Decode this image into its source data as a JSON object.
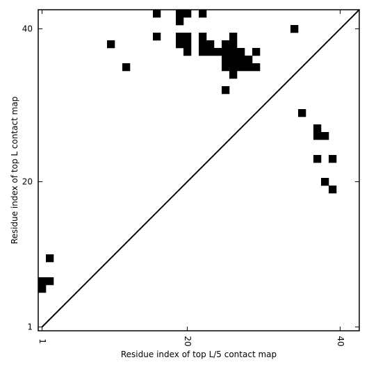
{
  "chart_data": {
    "type": "heatmap",
    "xlabel": "Residue index of top L/5 contact map",
    "ylabel": "Residue index of top L contact map",
    "xlim": [
      0.5,
      42.5
    ],
    "ylim": [
      0.5,
      42.5
    ],
    "x_ticks": [
      {
        "value": 1,
        "label": "1"
      },
      {
        "value": 20,
        "label": "20"
      },
      {
        "value": 40,
        "label": "40"
      }
    ],
    "y_ticks": [
      {
        "value": 1,
        "label": "1"
      },
      {
        "value": 20,
        "label": "20"
      },
      {
        "value": 40,
        "label": "40"
      }
    ],
    "diagonal": true,
    "cell_color": "#000000",
    "background_color": "#ffffff",
    "cells": [
      [
        1,
        6
      ],
      [
        1,
        7
      ],
      [
        2,
        7
      ],
      [
        2,
        10
      ],
      [
        10,
        38
      ],
      [
        12,
        35
      ],
      [
        16,
        39
      ],
      [
        16,
        42
      ],
      [
        19,
        38
      ],
      [
        19,
        39
      ],
      [
        19,
        41
      ],
      [
        19,
        42
      ],
      [
        20,
        37
      ],
      [
        20,
        38
      ],
      [
        20,
        39
      ],
      [
        20,
        42
      ],
      [
        22,
        37
      ],
      [
        22,
        38
      ],
      [
        22,
        39
      ],
      [
        22,
        42
      ],
      [
        23,
        37
      ],
      [
        23,
        38
      ],
      [
        24,
        37
      ],
      [
        25,
        32
      ],
      [
        25,
        35
      ],
      [
        25,
        36
      ],
      [
        25,
        37
      ],
      [
        25,
        38
      ],
      [
        26,
        34
      ],
      [
        26,
        35
      ],
      [
        26,
        36
      ],
      [
        26,
        37
      ],
      [
        26,
        38
      ],
      [
        26,
        39
      ],
      [
        27,
        35
      ],
      [
        27,
        36
      ],
      [
        27,
        37
      ],
      [
        28,
        35
      ],
      [
        28,
        36
      ],
      [
        29,
        35
      ],
      [
        29,
        37
      ],
      [
        34,
        40
      ],
      [
        35,
        29
      ],
      [
        37,
        23
      ],
      [
        37,
        26
      ],
      [
        37,
        27
      ],
      [
        38,
        20
      ],
      [
        38,
        26
      ],
      [
        39,
        19
      ],
      [
        39,
        23
      ]
    ]
  }
}
